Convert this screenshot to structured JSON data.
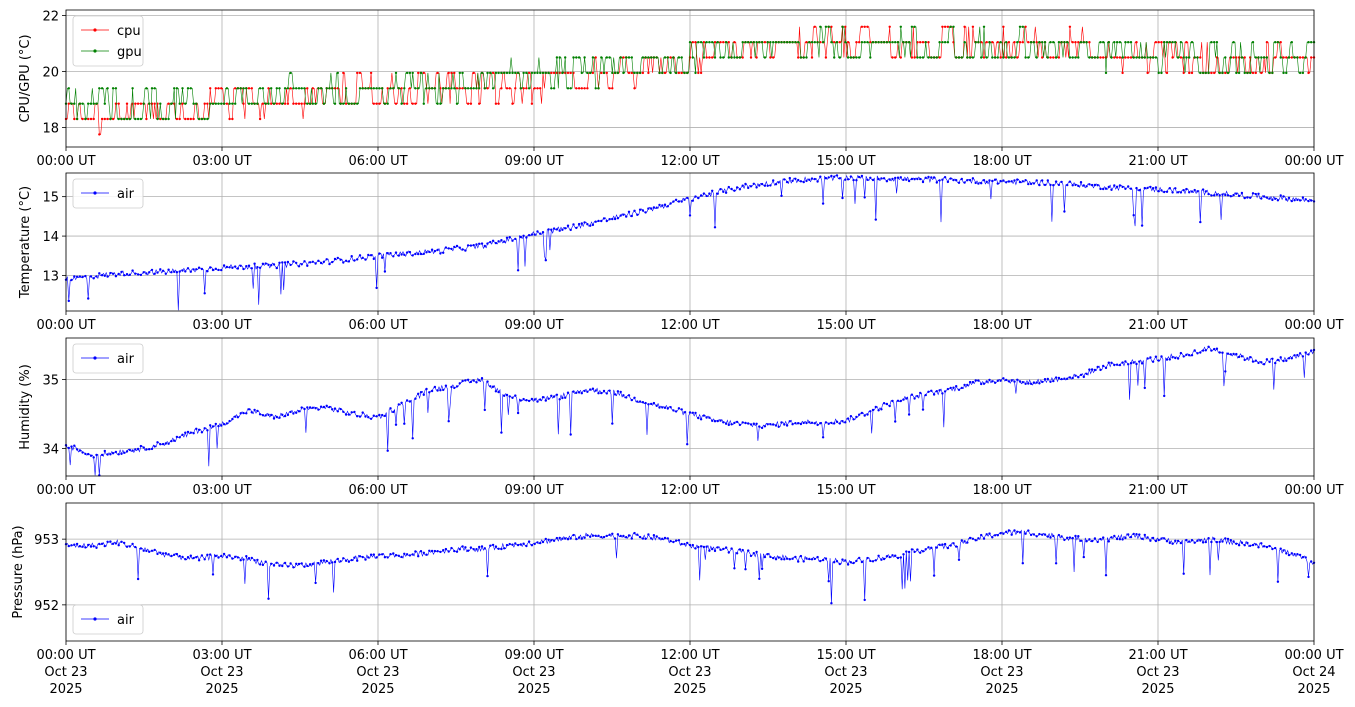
{
  "x_axis": {
    "ticks": [
      "00:00 UT",
      "03:00 UT",
      "06:00 UT",
      "09:00 UT",
      "12:00 UT",
      "15:00 UT",
      "18:00 UT",
      "21:00 UT",
      "00:00 UT"
    ],
    "tick_hours": [
      0,
      3,
      6,
      9,
      12,
      15,
      18,
      21,
      24
    ],
    "bottom_dates": [
      "Oct 23",
      "Oct 23",
      "Oct 23",
      "Oct 23",
      "Oct 23",
      "Oct 23",
      "Oct 23",
      "Oct 23",
      "Oct 24"
    ],
    "bottom_year": "2025",
    "range_hours": [
      0,
      24
    ]
  },
  "chart_data": [
    {
      "type": "line",
      "ylabel": "CPU/GPU (°C)",
      "ylim": [
        17.3,
        22.2
      ],
      "yticks": [
        18,
        20,
        22
      ],
      "grid": true,
      "legend_position": "top-left",
      "series": [
        {
          "name": "cpu",
          "color": "#ff0000",
          "x": [
            0,
            1,
            2,
            3,
            4,
            5,
            6,
            7,
            8,
            9,
            9.5,
            10,
            11,
            12,
            13,
            14,
            15,
            16,
            17,
            18,
            19,
            20,
            21,
            22,
            23,
            24
          ],
          "y": [
            18.2,
            18.3,
            18.4,
            18.6,
            18.8,
            19.0,
            19.2,
            19.3,
            19.3,
            19.3,
            19.4,
            19.7,
            19.9,
            20.3,
            20.6,
            20.8,
            20.8,
            20.8,
            20.9,
            20.9,
            20.8,
            20.7,
            20.4,
            20.3,
            20.2,
            20.1
          ]
        },
        {
          "name": "gpu",
          "color": "#008000",
          "x": [
            0,
            1,
            2,
            3,
            4,
            5,
            6,
            7,
            8,
            9,
            9.5,
            10,
            11,
            12,
            13,
            14,
            15,
            16,
            17,
            18,
            19,
            20,
            21,
            22,
            23,
            24
          ],
          "y": [
            18.7,
            18.7,
            18.8,
            18.9,
            19.0,
            19.1,
            19.2,
            19.3,
            19.5,
            19.7,
            19.8,
            20.0,
            20.1,
            20.4,
            20.6,
            20.8,
            20.9,
            20.8,
            20.8,
            20.8,
            20.7,
            20.6,
            20.4,
            20.3,
            20.3,
            20.3
          ]
        }
      ]
    },
    {
      "type": "line",
      "ylabel": "Temperature (°C)",
      "ylim": [
        12.1,
        15.6
      ],
      "yticks": [
        13,
        14,
        15
      ],
      "grid": true,
      "legend_position": "top-left",
      "series": [
        {
          "name": "air",
          "color": "#0000ff",
          "x": [
            0,
            1,
            2,
            3,
            4,
            5,
            6,
            7,
            8,
            9,
            10,
            11,
            12,
            13,
            14,
            15,
            16,
            17,
            18,
            19,
            20,
            21,
            22,
            23,
            24
          ],
          "y": [
            12.9,
            13.05,
            13.1,
            13.2,
            13.25,
            13.35,
            13.5,
            13.6,
            13.75,
            14.05,
            14.3,
            14.6,
            14.95,
            15.25,
            15.42,
            15.48,
            15.45,
            15.42,
            15.38,
            15.35,
            15.25,
            15.18,
            15.1,
            15.0,
            14.9
          ]
        }
      ]
    },
    {
      "type": "line",
      "ylabel": "Humidity (%)",
      "ylim": [
        33.6,
        35.6
      ],
      "yticks": [
        34,
        35
      ],
      "grid": true,
      "legend_position": "top-left",
      "series": [
        {
          "name": "air",
          "color": "#0000ff",
          "x": [
            0,
            0.5,
            1,
            1.5,
            2,
            2.5,
            3,
            3.5,
            4,
            4.5,
            5,
            5.5,
            6,
            6.5,
            7,
            7.5,
            8,
            8.5,
            9,
            9.5,
            10,
            10.5,
            11,
            11.5,
            12,
            12.5,
            13,
            13.5,
            14,
            14.5,
            15,
            15.5,
            16,
            16.5,
            17,
            17.5,
            18,
            18.5,
            19,
            19.5,
            20,
            20.5,
            21,
            21.5,
            22,
            22.5,
            23,
            23.5,
            24
          ],
          "y": [
            34.05,
            33.9,
            33.95,
            34.0,
            34.1,
            34.25,
            34.35,
            34.55,
            34.45,
            34.55,
            34.6,
            34.5,
            34.45,
            34.65,
            34.85,
            34.92,
            35.0,
            34.75,
            34.7,
            34.75,
            34.85,
            34.82,
            34.7,
            34.6,
            34.5,
            34.4,
            34.35,
            34.33,
            34.38,
            34.38,
            34.4,
            34.55,
            34.7,
            34.78,
            34.85,
            34.95,
            35.0,
            34.95,
            35.0,
            35.05,
            35.2,
            35.25,
            35.3,
            35.35,
            35.45,
            35.35,
            35.25,
            35.3,
            35.4
          ]
        }
      ]
    },
    {
      "type": "line",
      "ylabel": "Pressure (hPa)",
      "ylim": [
        951.45,
        953.55
      ],
      "yticks": [
        952,
        953
      ],
      "grid": true,
      "legend_position": "bottom-left",
      "series": [
        {
          "name": "air",
          "color": "#0000ff",
          "x": [
            0,
            0.5,
            1,
            1.5,
            2,
            2.5,
            3,
            3.5,
            4,
            4.5,
            5,
            5.5,
            6,
            6.5,
            7,
            7.5,
            8,
            8.5,
            9,
            9.5,
            10,
            10.5,
            11,
            11.5,
            12,
            12.5,
            13,
            13.5,
            14,
            14.5,
            15,
            15.5,
            16,
            16.5,
            17,
            17.5,
            18,
            18.5,
            19,
            19.5,
            20,
            20.5,
            21,
            21.5,
            22,
            22.5,
            23,
            23.5,
            24
          ],
          "y": [
            952.9,
            952.9,
            952.95,
            952.85,
            952.75,
            952.7,
            952.75,
            952.7,
            952.6,
            952.6,
            952.65,
            952.7,
            952.75,
            952.75,
            952.8,
            952.85,
            952.85,
            952.9,
            952.95,
            953.0,
            953.05,
            953.05,
            953.05,
            953.0,
            952.9,
            952.85,
            952.8,
            952.75,
            952.7,
            952.7,
            952.65,
            952.7,
            952.75,
            952.85,
            952.9,
            953.0,
            953.1,
            953.1,
            953.05,
            953.0,
            953.0,
            953.05,
            953.0,
            952.95,
            953.0,
            952.95,
            952.9,
            952.8,
            952.65
          ]
        }
      ]
    }
  ]
}
